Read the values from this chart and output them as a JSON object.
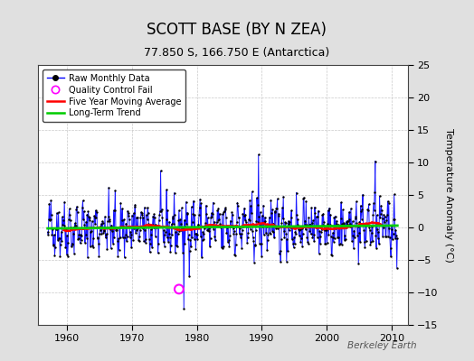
{
  "title": "SCOTT BASE (BY N ZEA)",
  "subtitle": "77.850 S, 166.750 E (Antarctica)",
  "ylabel": "Temperature Anomaly (°C)",
  "watermark": "Berkeley Earth",
  "xlim": [
    1955.5,
    2012.5
  ],
  "ylim": [
    -15,
    25
  ],
  "yticks": [
    -15,
    -10,
    -5,
    0,
    5,
    10,
    15,
    20,
    25
  ],
  "xticks": [
    1960,
    1970,
    1980,
    1990,
    2000,
    2010
  ],
  "start_year": 1957,
  "end_year": 2011,
  "seed": 42,
  "raw_color": "#0000FF",
  "dot_color": "#000000",
  "ma_color": "#FF0000",
  "trend_color": "#00CC00",
  "qc_color": "#FF00FF",
  "qc_point_x": 1977.25,
  "qc_point_y": -9.5,
  "trend_slope": 0.008,
  "trend_intercept": -0.15,
  "background_color": "#E0E0E0",
  "plot_background": "#FFFFFF",
  "grid_color": "#BBBBBB",
  "title_fontsize": 12,
  "subtitle_fontsize": 9,
  "label_fontsize": 8,
  "tick_fontsize": 8
}
